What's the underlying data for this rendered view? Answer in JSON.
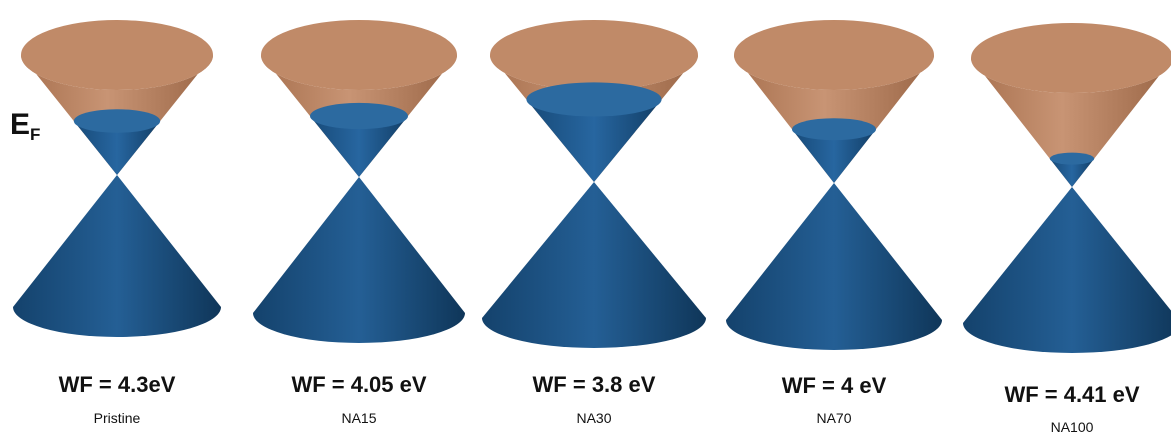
{
  "fermi_label": {
    "main": "E",
    "sub": "F"
  },
  "colors": {
    "conduction_cone": "#c08a68",
    "valence_cone": "#1f5a8c",
    "filled_cap": "#2c6aa0"
  },
  "cones": [
    {
      "name": "Pristine",
      "work_function": "WF = 4.3eV",
      "filling_fraction": 0.45
    },
    {
      "name": "NA15",
      "work_function": "WF = 4.05 eV",
      "filling_fraction": 0.5
    },
    {
      "name": "NA30",
      "work_function": "WF = 3.8 eV",
      "filling_fraction": 0.65
    },
    {
      "name": "NA70",
      "work_function": "WF = 4 eV",
      "filling_fraction": 0.42
    },
    {
      "name": "NA100",
      "work_function": "WF = 4.41 eV",
      "filling_fraction": 0.22
    }
  ]
}
